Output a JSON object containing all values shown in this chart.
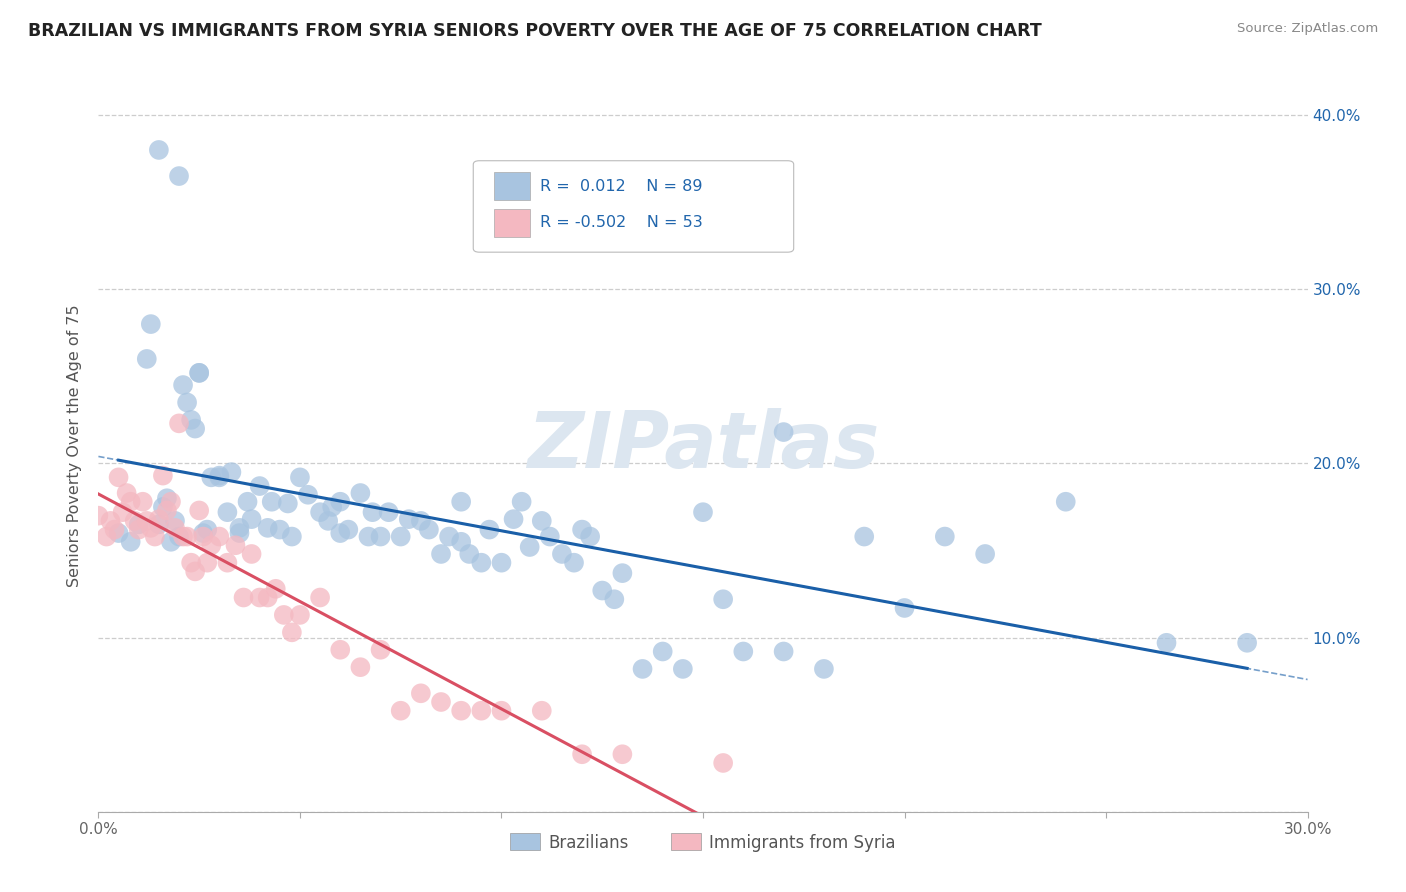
{
  "title": "BRAZILIAN VS IMMIGRANTS FROM SYRIA SENIORS POVERTY OVER THE AGE OF 75 CORRELATION CHART",
  "source": "Source: ZipAtlas.com",
  "ylabel": "Seniors Poverty Over the Age of 75",
  "xlim": [
    0.0,
    0.3
  ],
  "ylim": [
    0.0,
    0.42
  ],
  "xticks": [
    0.0,
    0.05,
    0.1,
    0.15,
    0.2,
    0.25,
    0.3
  ],
  "xtick_labels": [
    "0.0%",
    "",
    "",
    "",
    "",
    "",
    "30.0%"
  ],
  "yticks": [
    0.0,
    0.1,
    0.2,
    0.3,
    0.4
  ],
  "ytick_labels_right": [
    "",
    "10.0%",
    "20.0%",
    "30.0%",
    "40.0%"
  ],
  "grid_color": "#c8c8c8",
  "background_color": "#ffffff",
  "watermark": "ZIPatlas",
  "watermark_color": "#dce6f0",
  "series": [
    {
      "name": "Brazilians",
      "R": 0.012,
      "N": 89,
      "color": "#a8c4e0",
      "line_color": "#1a5fa8",
      "line_style": "solid",
      "x": [
        0.005,
        0.008,
        0.01,
        0.012,
        0.013,
        0.015,
        0.016,
        0.017,
        0.018,
        0.019,
        0.02,
        0.021,
        0.022,
        0.023,
        0.024,
        0.025,
        0.026,
        0.027,
        0.028,
        0.03,
        0.032,
        0.033,
        0.035,
        0.037,
        0.038,
        0.04,
        0.042,
        0.043,
        0.045,
        0.047,
        0.048,
        0.05,
        0.052,
        0.055,
        0.057,
        0.058,
        0.06,
        0.062,
        0.065,
        0.067,
        0.068,
        0.07,
        0.072,
        0.075,
        0.077,
        0.08,
        0.082,
        0.085,
        0.087,
        0.09,
        0.092,
        0.095,
        0.097,
        0.1,
        0.103,
        0.105,
        0.107,
        0.11,
        0.112,
        0.115,
        0.118,
        0.12,
        0.122,
        0.125,
        0.128,
        0.13,
        0.135,
        0.14,
        0.145,
        0.15,
        0.155,
        0.16,
        0.17,
        0.18,
        0.19,
        0.2,
        0.21,
        0.22,
        0.24,
        0.015,
        0.02,
        0.025,
        0.03,
        0.035,
        0.06,
        0.09,
        0.265,
        0.285,
        0.17
      ],
      "y": [
        0.16,
        0.155,
        0.165,
        0.26,
        0.28,
        0.165,
        0.175,
        0.18,
        0.155,
        0.167,
        0.158,
        0.245,
        0.235,
        0.225,
        0.22,
        0.252,
        0.16,
        0.162,
        0.192,
        0.193,
        0.172,
        0.195,
        0.163,
        0.178,
        0.168,
        0.187,
        0.163,
        0.178,
        0.162,
        0.177,
        0.158,
        0.192,
        0.182,
        0.172,
        0.167,
        0.175,
        0.178,
        0.162,
        0.183,
        0.158,
        0.172,
        0.158,
        0.172,
        0.158,
        0.168,
        0.167,
        0.162,
        0.148,
        0.158,
        0.178,
        0.148,
        0.143,
        0.162,
        0.143,
        0.168,
        0.178,
        0.152,
        0.167,
        0.158,
        0.148,
        0.143,
        0.162,
        0.158,
        0.127,
        0.122,
        0.137,
        0.082,
        0.092,
        0.082,
        0.172,
        0.122,
        0.092,
        0.092,
        0.082,
        0.158,
        0.117,
        0.158,
        0.148,
        0.178,
        0.38,
        0.365,
        0.252,
        0.192,
        0.16,
        0.16,
        0.155,
        0.097,
        0.097,
        0.218
      ]
    },
    {
      "name": "Immigrants from Syria",
      "R": -0.502,
      "N": 53,
      "color": "#f4b8c1",
      "line_color": "#d94f63",
      "line_style": "solid",
      "dashed_color": "#d0a0a8",
      "x": [
        0.0,
        0.002,
        0.003,
        0.004,
        0.005,
        0.006,
        0.007,
        0.008,
        0.009,
        0.01,
        0.011,
        0.012,
        0.013,
        0.014,
        0.015,
        0.016,
        0.017,
        0.018,
        0.019,
        0.02,
        0.021,
        0.022,
        0.023,
        0.024,
        0.025,
        0.026,
        0.027,
        0.028,
        0.03,
        0.032,
        0.034,
        0.036,
        0.038,
        0.04,
        0.042,
        0.044,
        0.046,
        0.048,
        0.05,
        0.055,
        0.06,
        0.065,
        0.07,
        0.075,
        0.08,
        0.085,
        0.09,
        0.095,
        0.1,
        0.11,
        0.12,
        0.13,
        0.155
      ],
      "y": [
        0.17,
        0.158,
        0.167,
        0.162,
        0.192,
        0.172,
        0.183,
        0.178,
        0.167,
        0.162,
        0.178,
        0.167,
        0.163,
        0.158,
        0.168,
        0.193,
        0.173,
        0.178,
        0.163,
        0.223,
        0.158,
        0.158,
        0.143,
        0.138,
        0.173,
        0.158,
        0.143,
        0.153,
        0.158,
        0.143,
        0.153,
        0.123,
        0.148,
        0.123,
        0.123,
        0.128,
        0.113,
        0.103,
        0.113,
        0.123,
        0.093,
        0.083,
        0.093,
        0.058,
        0.068,
        0.063,
        0.058,
        0.058,
        0.058,
        0.058,
        0.033,
        0.033,
        0.028
      ]
    }
  ]
}
